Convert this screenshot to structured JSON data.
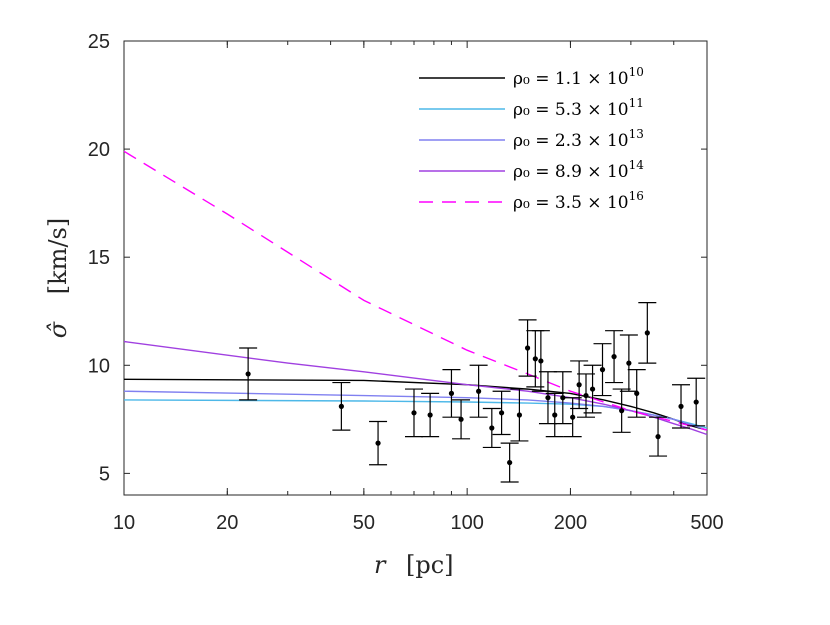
{
  "chart_data": {
    "type": "line",
    "xscale": "log",
    "xlim": [
      10,
      500
    ],
    "ylim": [
      4,
      25
    ],
    "xticks": [
      10,
      20,
      50,
      100,
      200,
      500
    ],
    "xtick_labels": [
      "10",
      "20",
      "50",
      "100",
      "200",
      "500"
    ],
    "yticks": [
      5,
      10,
      15,
      20,
      25
    ],
    "ytick_labels": [
      "5",
      "10",
      "15",
      "20",
      "25"
    ],
    "xlabel": {
      "var": "r",
      "unit": "[pc]"
    },
    "ylabel": {
      "var": "σ̂",
      "unit": "[km/s]"
    },
    "legend_position": "top-right",
    "series": [
      {
        "name": "ρ0 = 1.1 × 10^10",
        "label_base": "ρ₀ = 1.1 × 10",
        "label_exp": "10",
        "color": "#000000",
        "dash": "solid",
        "x": [
          10,
          50,
          100,
          150,
          200,
          250,
          300,
          350,
          400,
          450,
          500
        ],
        "y": [
          9.35,
          9.3,
          9.1,
          8.9,
          8.7,
          8.4,
          8.1,
          7.8,
          7.5,
          7.2,
          7.0
        ]
      },
      {
        "name": "ρ0 = 5.3 × 10^11",
        "label_base": "ρ₀ = 5.3 × 10",
        "label_exp": "11",
        "color": "#4db8e8",
        "dash": "solid",
        "x": [
          10,
          50,
          100,
          150,
          200,
          250,
          300,
          350,
          400,
          450,
          500
        ],
        "y": [
          8.4,
          8.35,
          8.3,
          8.25,
          8.2,
          8.1,
          7.9,
          7.7,
          7.5,
          7.3,
          7.1
        ]
      },
      {
        "name": "ρ0 = 2.3 × 10^13",
        "label_base": "ρ₀ = 2.3 × 10",
        "label_exp": "13",
        "color": "#8080f0",
        "dash": "solid",
        "x": [
          10,
          50,
          100,
          150,
          200,
          250,
          300,
          350,
          400,
          450,
          500
        ],
        "y": [
          8.8,
          8.6,
          8.5,
          8.4,
          8.25,
          8.1,
          7.9,
          7.7,
          7.5,
          7.25,
          7.0
        ]
      },
      {
        "name": "ρ0 = 8.9 × 10^14",
        "label_base": "ρ₀ = 8.9 × 10",
        "label_exp": "14",
        "color": "#a040e0",
        "dash": "solid",
        "x": [
          10,
          30,
          50,
          100,
          150,
          200,
          250,
          300,
          350,
          400,
          450,
          500
        ],
        "y": [
          11.1,
          10.1,
          9.7,
          9.1,
          8.8,
          8.5,
          8.2,
          7.9,
          7.6,
          7.3,
          7.05,
          6.8
        ]
      },
      {
        "name": "ρ0 = 3.5 × 10^16",
        "label_base": "ρ₀ = 3.5 × 10",
        "label_exp": "16",
        "color": "#ff00ff",
        "dash": "dashed",
        "x": [
          10,
          20,
          50,
          100,
          150,
          200,
          250,
          300,
          400,
          500
        ],
        "y": [
          19.9,
          17.0,
          13.0,
          10.7,
          9.6,
          8.8,
          8.3,
          7.9,
          7.4,
          7.0
        ]
      }
    ],
    "data_points": [
      {
        "x": 23,
        "y": 9.6,
        "err": 1.2
      },
      {
        "x": 43,
        "y": 8.1,
        "err": 1.1
      },
      {
        "x": 55,
        "y": 6.4,
        "err": 1.0
      },
      {
        "x": 70,
        "y": 7.8,
        "err": 1.1
      },
      {
        "x": 78,
        "y": 7.7,
        "err": 1.0
      },
      {
        "x": 90,
        "y": 8.7,
        "err": 1.1
      },
      {
        "x": 96,
        "y": 7.5,
        "err": 0.9
      },
      {
        "x": 108,
        "y": 8.8,
        "err": 1.2
      },
      {
        "x": 118,
        "y": 7.1,
        "err": 0.9
      },
      {
        "x": 126,
        "y": 7.8,
        "err": 1.0
      },
      {
        "x": 133,
        "y": 5.5,
        "err": 0.9
      },
      {
        "x": 142,
        "y": 7.7,
        "err": 1.2
      },
      {
        "x": 150,
        "y": 10.8,
        "err": 1.3
      },
      {
        "x": 158,
        "y": 10.3,
        "err": 1.3
      },
      {
        "x": 164,
        "y": 10.2,
        "err": 1.4
      },
      {
        "x": 172,
        "y": 8.5,
        "err": 1.2
      },
      {
        "x": 180,
        "y": 7.7,
        "err": 1.0
      },
      {
        "x": 190,
        "y": 8.5,
        "err": 1.2
      },
      {
        "x": 203,
        "y": 7.6,
        "err": 0.9
      },
      {
        "x": 212,
        "y": 9.1,
        "err": 1.1
      },
      {
        "x": 222,
        "y": 8.6,
        "err": 1.0
      },
      {
        "x": 232,
        "y": 8.9,
        "err": 1.1
      },
      {
        "x": 248,
        "y": 9.8,
        "err": 1.2
      },
      {
        "x": 268,
        "y": 10.4,
        "err": 1.2
      },
      {
        "x": 282,
        "y": 7.9,
        "err": 1.0
      },
      {
        "x": 296,
        "y": 10.1,
        "err": 1.3
      },
      {
        "x": 312,
        "y": 8.7,
        "err": 1.1
      },
      {
        "x": 335,
        "y": 11.5,
        "err": 1.4
      },
      {
        "x": 360,
        "y": 6.7,
        "err": 0.9
      },
      {
        "x": 420,
        "y": 8.1,
        "err": 1.0
      },
      {
        "x": 465,
        "y": 8.3,
        "err": 1.1
      }
    ]
  }
}
